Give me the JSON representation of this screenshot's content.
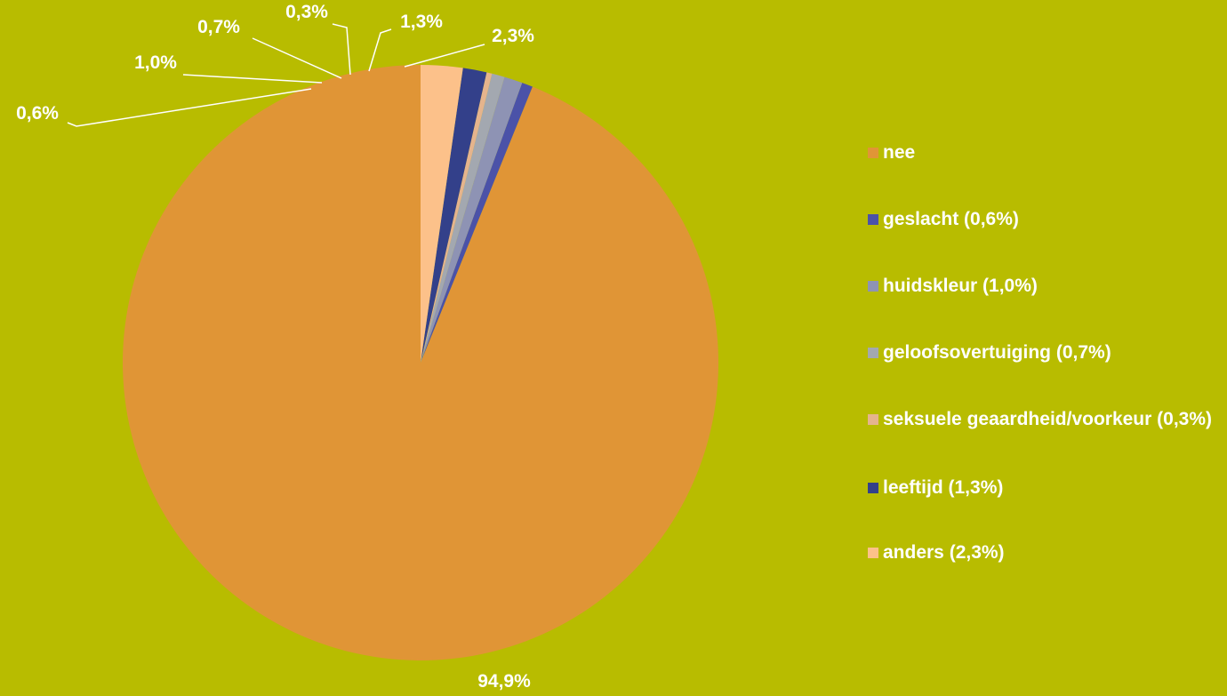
{
  "chart_data": {
    "type": "pie",
    "background_color": "#b8bc00",
    "start_angle_degrees": 0,
    "direction": "counterclockwise",
    "legend_position": "right",
    "slices": [
      {
        "name": "nee",
        "legend_label": "nee",
        "value": 94.9,
        "label": "94,9%",
        "color": "#e09536"
      },
      {
        "name": "geslacht",
        "legend_label": "geslacht (0,6%)",
        "value": 0.6,
        "label": "0,6%",
        "color": "#4b52a8"
      },
      {
        "name": "huidskleur",
        "legend_label": "huidskleur (1,0%)",
        "value": 1.0,
        "label": "1,0%",
        "color": "#8e93b4"
      },
      {
        "name": "geloofsovertuiging",
        "legend_label": "geloofsovertuiging (0,7%)",
        "value": 0.7,
        "label": "0,7%",
        "color": "#a3a8b0"
      },
      {
        "name": "seksuele geaardheid/voorkeur",
        "legend_label": "seksuele geaardheid/voorkeur (0,3%)",
        "value": 0.3,
        "label": "0,3%",
        "color": "#e5b48d"
      },
      {
        "name": "leeftijd",
        "legend_label": "leeftijd (1,3%)",
        "value": 1.3,
        "label": "1,3%",
        "color": "#33408a"
      },
      {
        "name": "anders",
        "legend_label": "anders (2,3%)",
        "value": 2.3,
        "label": "2,3%",
        "color": "#fcc18a"
      }
    ]
  }
}
